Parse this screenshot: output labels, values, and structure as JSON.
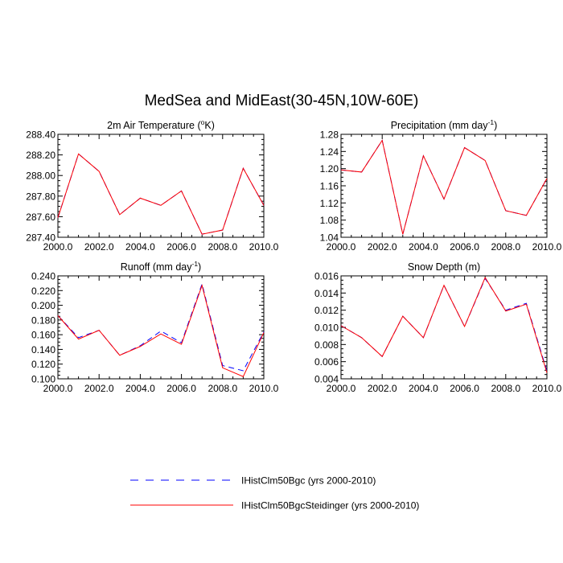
{
  "title": "MedSea and MidEast(30-45N,10W-60E)",
  "legend": [
    {
      "label": "IHistClm50Bgc (yrs 2000-2010)",
      "color": "#0000ff",
      "dash": "dashed"
    },
    {
      "label": "IHistClm50BgcSteidinger (yrs 2000-2010)",
      "color": "#ff0000",
      "dash": "solid"
    }
  ],
  "chart_data": [
    {
      "type": "line",
      "title": "2m Air Temperature (°K)",
      "title_main": "2m Air Temperature (",
      "title_sup": "o",
      "title_end": "K)",
      "x": [
        2000,
        2001,
        2002,
        2003,
        2004,
        2005,
        2006,
        2007,
        2008,
        2009,
        2010
      ],
      "xlim": [
        2000,
        2010
      ],
      "xticks": [
        "2000.0",
        "2002.0",
        "2004.0",
        "2006.0",
        "2008.0",
        "2010.0"
      ],
      "ylim": [
        287.4,
        288.4
      ],
      "yticks": [
        "287.40",
        "287.60",
        "287.80",
        "288.00",
        "288.20",
        "288.40"
      ],
      "series": [
        {
          "name": "IHistClm50Bgc (yrs 2000-2010)",
          "values": [
            287.59,
            288.21,
            288.04,
            287.62,
            287.78,
            287.71,
            287.85,
            287.43,
            287.47,
            288.07,
            287.71
          ]
        },
        {
          "name": "IHistClm50BgcSteidinger (yrs 2000-2010)",
          "values": [
            287.59,
            288.21,
            288.04,
            287.62,
            287.78,
            287.71,
            287.85,
            287.43,
            287.47,
            288.07,
            287.71
          ]
        }
      ]
    },
    {
      "type": "line",
      "title": "Precipitation (mm day-1)",
      "title_main": "Precipitation (mm day",
      "title_sup": "-1",
      "title_end": ")",
      "x": [
        2000,
        2001,
        2002,
        2003,
        2004,
        2005,
        2006,
        2007,
        2008,
        2009,
        2010
      ],
      "xlim": [
        2000,
        2010
      ],
      "xticks": [
        "2000.0",
        "2002.0",
        "2004.0",
        "2006.0",
        "2008.0",
        "2010.0"
      ],
      "ylim": [
        1.04,
        1.28
      ],
      "yticks": [
        "1.04",
        "1.08",
        "1.12",
        "1.16",
        "1.20",
        "1.24",
        "1.28"
      ],
      "series": [
        {
          "name": "IHistClm50Bgc (yrs 2000-2010)",
          "values": [
            1.197,
            1.192,
            1.266,
            1.047,
            1.23,
            1.129,
            1.249,
            1.219,
            1.102,
            1.091,
            1.177
          ]
        },
        {
          "name": "IHistClm50BgcSteidinger (yrs 2000-2010)",
          "values": [
            1.197,
            1.192,
            1.266,
            1.047,
            1.23,
            1.129,
            1.249,
            1.219,
            1.102,
            1.091,
            1.177
          ]
        }
      ]
    },
    {
      "type": "line",
      "title": "Runoff (mm day-1)",
      "title_main": "Runoff (mm day",
      "title_sup": "-1",
      "title_end": ")",
      "x": [
        2000,
        2001,
        2002,
        2003,
        2004,
        2005,
        2006,
        2007,
        2008,
        2009,
        2010
      ],
      "xlim": [
        2000,
        2010
      ],
      "xticks": [
        "2000.0",
        "2002.0",
        "2004.0",
        "2006.0",
        "2008.0",
        "2010.0"
      ],
      "ylim": [
        0.1,
        0.24
      ],
      "yticks": [
        "0.100",
        "0.120",
        "0.140",
        "0.160",
        "0.180",
        "0.200",
        "0.220",
        "0.240"
      ],
      "series": [
        {
          "name": "IHistClm50Bgc (yrs 2000-2010)",
          "values": [
            0.186,
            0.156,
            0.166,
            0.132,
            0.145,
            0.165,
            0.149,
            0.229,
            0.118,
            0.111,
            0.164
          ]
        },
        {
          "name": "IHistClm50BgcSteidinger (yrs 2000-2010)",
          "values": [
            0.186,
            0.154,
            0.166,
            0.132,
            0.144,
            0.161,
            0.147,
            0.227,
            0.115,
            0.103,
            0.163
          ]
        }
      ]
    },
    {
      "type": "line",
      "title": "Snow Depth (m)",
      "title_main": "Snow Depth (m)",
      "title_sup": "",
      "title_end": "",
      "x": [
        2000,
        2001,
        2002,
        2003,
        2004,
        2005,
        2006,
        2007,
        2008,
        2009,
        2010
      ],
      "xlim": [
        2000,
        2010
      ],
      "xticks": [
        "2000.0",
        "2002.0",
        "2004.0",
        "2006.0",
        "2008.0",
        "2010.0"
      ],
      "ylim": [
        0.004,
        0.016
      ],
      "yticks": [
        "0.004",
        "0.006",
        "0.008",
        "0.010",
        "0.012",
        "0.014",
        "0.016"
      ],
      "series": [
        {
          "name": "IHistClm50Bgc (yrs 2000-2010)",
          "values": [
            0.0102,
            0.0088,
            0.0066,
            0.0113,
            0.0088,
            0.0149,
            0.0101,
            0.0157,
            0.012,
            0.0128,
            0.0049
          ]
        },
        {
          "name": "IHistClm50BgcSteidinger (yrs 2000-2010)",
          "values": [
            0.0102,
            0.0088,
            0.0066,
            0.0113,
            0.0088,
            0.0149,
            0.0101,
            0.0158,
            0.0119,
            0.0127,
            0.0047
          ]
        }
      ]
    }
  ]
}
